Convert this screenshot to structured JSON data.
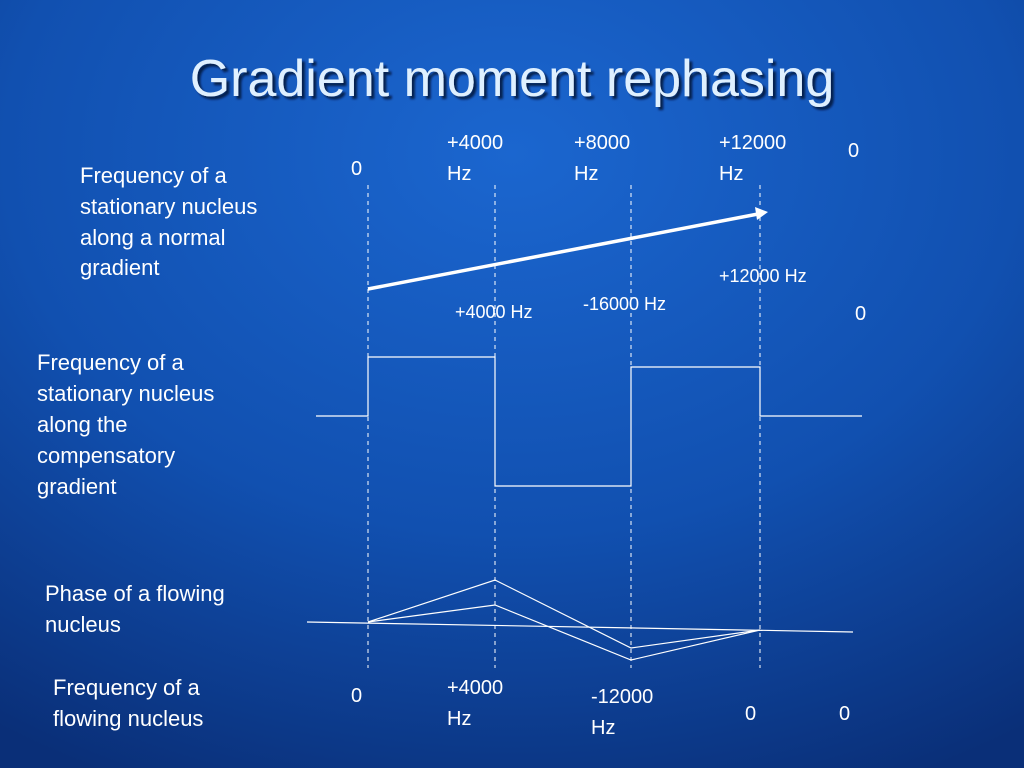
{
  "title": "Gradient moment rephasing",
  "rows": [
    {
      "label": [
        "Frequency of a",
        "stationary nucleus",
        "along a normal",
        "gradient"
      ]
    },
    {
      "label": [
        "Frequency of a",
        "stationary nucleus",
        "along the",
        "compensatory",
        "gradient"
      ]
    },
    {
      "label": [
        "Phase of a flowing",
        "nucleus"
      ]
    },
    {
      "label": [
        "Frequency of a",
        "flowing nucleus"
      ]
    }
  ],
  "normal_gradient_annotations": [
    [
      "0"
    ],
    [
      "+4000",
      "Hz"
    ],
    [
      "+8000",
      "Hz"
    ],
    [
      "+12000",
      "Hz"
    ],
    [
      "0"
    ]
  ],
  "compensatory_annotations": [
    [
      "+12000 Hz"
    ],
    [
      "+4000 Hz"
    ],
    [
      "-16000 Hz"
    ],
    [
      "0"
    ]
  ],
  "flowing_annotations": [
    [
      "0"
    ],
    [
      "+4000",
      "Hz"
    ],
    [
      "-12000",
      "Hz"
    ],
    [
      "0"
    ],
    [
      "0"
    ]
  ]
}
